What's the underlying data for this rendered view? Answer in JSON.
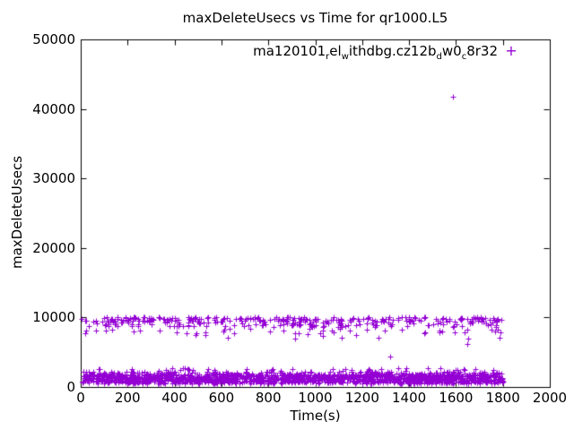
{
  "chart_data": {
    "type": "scatter",
    "title": "maxDeleteUsecs vs Time for qr1000.L5",
    "xlabel": "Time(s)",
    "ylabel": "maxDeleteUsecs",
    "xlim": [
      0,
      2000
    ],
    "ylim": [
      0,
      50000
    ],
    "xticks": [
      0,
      200,
      400,
      600,
      800,
      1000,
      1200,
      1400,
      1600,
      1800,
      2000
    ],
    "yticks": [
      0,
      10000,
      20000,
      30000,
      40000,
      50000
    ],
    "grid": false,
    "legend_position": "top-right-inside",
    "marker": "plus",
    "marker_color": "#9400D3",
    "border_color": "#000000",
    "background_color": "#ffffff",
    "series": [
      {
        "name_plain": "ma120101_rel_withdbg.cz12b_dw0_c8r32",
        "name_segments": [
          {
            "t": "ma120101",
            "sub": false
          },
          {
            "t": "r",
            "sub": true
          },
          {
            "t": "el",
            "sub": false
          },
          {
            "t": "w",
            "sub": true
          },
          {
            "t": "ithdbg.cz12b",
            "sub": false
          },
          {
            "t": "d",
            "sub": true
          },
          {
            "t": "w0",
            "sub": false
          },
          {
            "t": "c",
            "sub": true
          },
          {
            "t": "8r32",
            "sub": false
          }
        ],
        "seed": 20120101,
        "bands": [
          {
            "label": "lower-band",
            "x_range": [
              2,
              1802
            ],
            "count": 1700,
            "levels": [
              {
                "y_min": 700,
                "y_max": 1850,
                "p": 0.78
              },
              {
                "y_min": 480,
                "y_max": 800,
                "p": 0.12
              },
              {
                "y_min": 1800,
                "y_max": 2250,
                "p": 0.075
              },
              {
                "y_min": 2250,
                "y_max": 2750,
                "p": 0.025
              }
            ]
          },
          {
            "label": "upper-band",
            "x_range": [
              0,
              1800
            ],
            "count": 400,
            "levels": [
              {
                "y_min": 9400,
                "y_max": 10080,
                "p": 0.55
              },
              {
                "y_min": 8700,
                "y_max": 9500,
                "p": 0.3
              },
              {
                "y_min": 7700,
                "y_max": 8800,
                "p": 0.11
              },
              {
                "y_min": 6800,
                "y_max": 7700,
                "p": 0.04
              }
            ]
          }
        ],
        "outliers": [
          [
            1587,
            41700
          ],
          [
            1320,
            4400
          ],
          [
            1648,
            6200
          ],
          [
            1532,
            2750
          ],
          [
            1753,
            8250
          ],
          [
            1767,
            8050
          ],
          [
            1780,
            8300
          ],
          [
            1791,
            7900
          ]
        ]
      }
    ]
  }
}
